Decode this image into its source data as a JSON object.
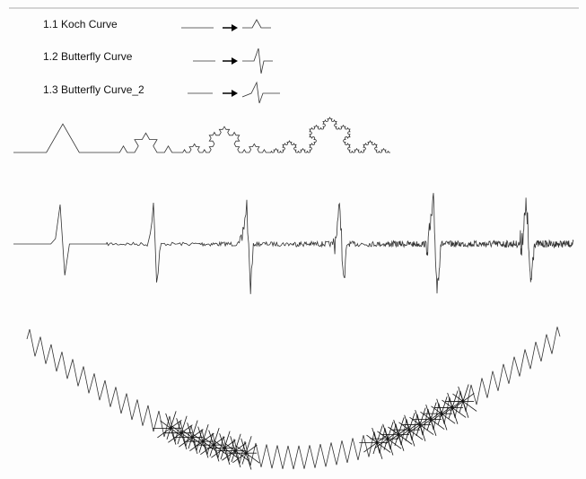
{
  "items": [
    {
      "label": "1.1 Koch Curve"
    },
    {
      "label": "1.2 Butterfly Curve"
    },
    {
      "label": "1.3 Butterfly Curve_2"
    }
  ]
}
